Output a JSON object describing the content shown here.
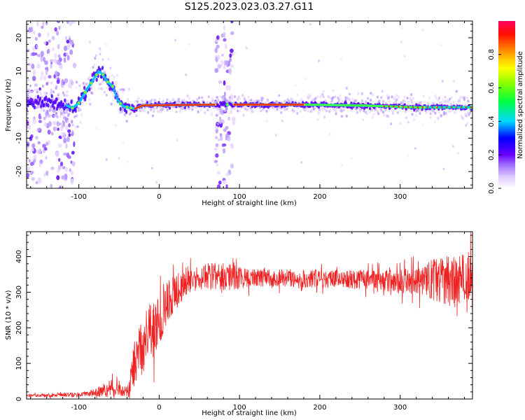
{
  "title": "S125.2023.023.03.27.G11",
  "chart_data": [
    {
      "type": "heatmap",
      "xlabel": "Height of straight line (km)",
      "ylabel": "Frequency (Hz)",
      "xlim": [
        -165,
        390
      ],
      "ylim": [
        -25,
        25
      ],
      "xticks": [
        -100,
        0,
        100,
        200,
        300
      ],
      "yticks": [
        -20,
        -10,
        0,
        10,
        20
      ],
      "colorbar": {
        "label": "Normalized spectral amplitude",
        "ticks": [
          "0.0",
          "0.2",
          "0.4",
          "0.6",
          "0.8"
        ],
        "range": [
          0,
          1
        ]
      },
      "ridge": [
        {
          "x": -165,
          "y": 0.5
        },
        {
          "x": -140,
          "y": 0.8
        },
        {
          "x": -120,
          "y": 0.3
        },
        {
          "x": -108,
          "y": -1.0
        },
        {
          "x": -100,
          "y": 0.5
        },
        {
          "x": -90,
          "y": 4.5
        },
        {
          "x": -82,
          "y": 7.5
        },
        {
          "x": -75,
          "y": 10
        },
        {
          "x": -70,
          "y": 9
        },
        {
          "x": -65,
          "y": 7
        },
        {
          "x": -58,
          "y": 5.5
        },
        {
          "x": -52,
          "y": 1.5
        },
        {
          "x": -45,
          "y": -0.5
        },
        {
          "x": -38,
          "y": -0.8
        },
        {
          "x": -30,
          "y": -1.2
        },
        {
          "x": -20,
          "y": -0.2
        },
        {
          "x": 70,
          "y": 0.0
        },
        {
          "x": 180,
          "y": 0.0
        },
        {
          "x": 260,
          "y": -0.3
        },
        {
          "x": 320,
          "y": -0.8
        },
        {
          "x": 390,
          "y": -0.8
        }
      ],
      "data_gaps": [
        [
          -165,
          -105
        ],
        [
          70,
          93
        ]
      ]
    },
    {
      "type": "line",
      "xlabel": "Height of straight line (km)",
      "ylabel": "SNR (10 * v/v)",
      "xlim": [
        -165,
        390
      ],
      "ylim": [
        0,
        470
      ],
      "xticks": [
        -100,
        0,
        100,
        200,
        300
      ],
      "yticks": [
        0,
        100,
        200,
        300,
        400
      ],
      "color": "#ee2222",
      "trend": [
        {
          "x": -165,
          "y": 10
        },
        {
          "x": -100,
          "y": 12
        },
        {
          "x": -80,
          "y": 18
        },
        {
          "x": -60,
          "y": 30
        },
        {
          "x": -45,
          "y": 20
        },
        {
          "x": -38,
          "y": 25
        },
        {
          "x": -30,
          "y": 110
        },
        {
          "x": -20,
          "y": 150
        },
        {
          "x": -10,
          "y": 185
        },
        {
          "x": 0,
          "y": 220
        },
        {
          "x": 10,
          "y": 270
        },
        {
          "x": 20,
          "y": 300
        },
        {
          "x": 35,
          "y": 335
        },
        {
          "x": 60,
          "y": 345
        },
        {
          "x": 100,
          "y": 340
        },
        {
          "x": 150,
          "y": 340
        },
        {
          "x": 200,
          "y": 338
        },
        {
          "x": 250,
          "y": 335
        },
        {
          "x": 300,
          "y": 330
        },
        {
          "x": 340,
          "y": 335
        },
        {
          "x": 370,
          "y": 330
        },
        {
          "x": 390,
          "y": 325
        }
      ],
      "noise": [
        {
          "x": -165,
          "y": 4
        },
        {
          "x": -90,
          "y": 6
        },
        {
          "x": -60,
          "y": 25
        },
        {
          "x": -40,
          "y": 15
        },
        {
          "x": -30,
          "y": 70
        },
        {
          "x": -10,
          "y": 90
        },
        {
          "x": 10,
          "y": 60
        },
        {
          "x": 40,
          "y": 35
        },
        {
          "x": 80,
          "y": 40
        },
        {
          "x": 120,
          "y": 25
        },
        {
          "x": 200,
          "y": 25
        },
        {
          "x": 280,
          "y": 30
        },
        {
          "x": 320,
          "y": 40
        },
        {
          "x": 350,
          "y": 65
        },
        {
          "x": 390,
          "y": 85
        }
      ]
    }
  ]
}
